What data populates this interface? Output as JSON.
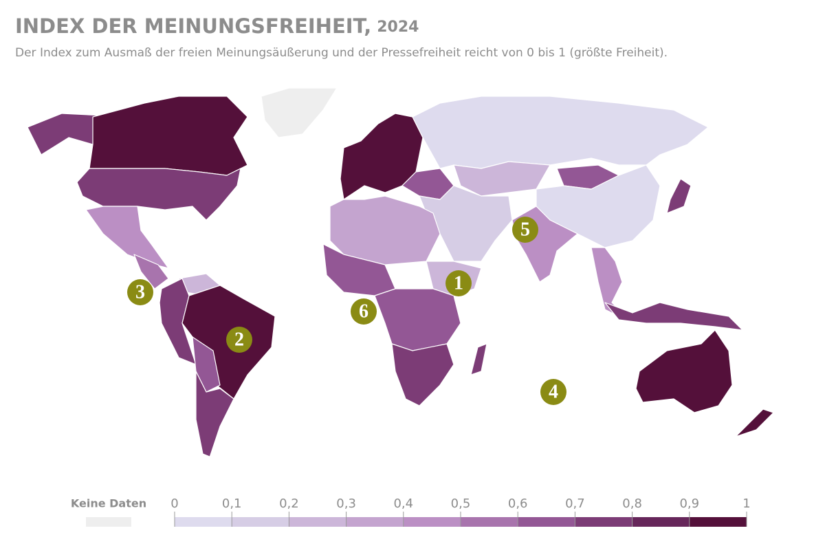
{
  "header": {
    "title": "INDEX DER MEINUNGSFREIHEIT,",
    "year": "2024",
    "subtitle": "Der Index zum Ausmaß der freien Meinungsäußerung und der Pressefreiheit reicht von 0 bis 1 (größte Freiheit)."
  },
  "markers": [
    "1",
    "2",
    "3",
    "4",
    "5",
    "6"
  ],
  "marker_color": "#8a8b14",
  "legend": {
    "no_data_label": "Keine Daten",
    "no_data_color": "#eeeeee",
    "ticks": [
      0,
      {
        "value": 0.1,
        "label": "0,1"
      },
      {
        "value": 0.2,
        "label": "0,2"
      },
      {
        "value": 0.3,
        "label": "0,3"
      },
      {
        "value": 0.4,
        "label": "0,4"
      },
      {
        "value": 0.5,
        "label": "0,5"
      },
      {
        "value": 0.6,
        "label": "0,6"
      },
      {
        "value": 0.7,
        "label": "0,7"
      },
      {
        "value": 0.8,
        "label": "0,8"
      },
      {
        "value": 0.9,
        "label": "0,9"
      },
      1
    ],
    "colors": [
      "#dedbee",
      "#d6cde5",
      "#ccb6d9",
      "#c4a4cf",
      "#bb8fc4",
      "#a874ad",
      "#935795",
      "#7c3c76",
      "#66265a",
      "#54103a"
    ]
  }
}
